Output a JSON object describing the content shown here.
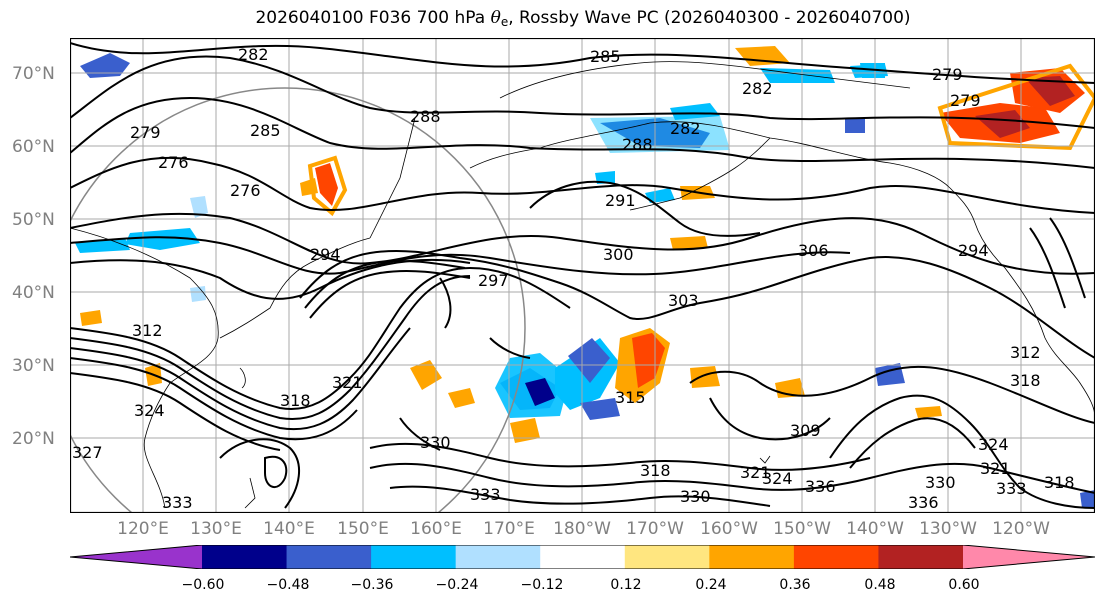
{
  "title": {
    "prefix": "2026040100 F036 700 hPa ",
    "theta": "θ",
    "theta_sub": "e",
    "suffix": ", Rossby Wave PC (2026040300 - 2026040700)"
  },
  "latitude_labels": [
    "70°N",
    "60°N",
    "50°N",
    "40°N",
    "30°N",
    "20°N"
  ],
  "longitude_labels": [
    "120°E",
    "130°E",
    "140°E",
    "150°E",
    "160°E",
    "170°E",
    "180°W",
    "170°W",
    "160°W",
    "150°W",
    "140°W",
    "130°W",
    "120°W"
  ],
  "contour_labels": [
    "282",
    "285",
    "288",
    "285",
    "282",
    "279",
    "279",
    "276",
    "276",
    "279",
    "288",
    "282",
    "291",
    "294",
    "300",
    "297",
    "306",
    "303",
    "294",
    "312",
    "321",
    "318",
    "324",
    "315",
    "309",
    "312",
    "318",
    "330",
    "333",
    "327",
    "324",
    "321",
    "318",
    "330",
    "336",
    "333",
    "330",
    "336",
    "324",
    "321",
    "318",
    "333"
  ],
  "colorbar": {
    "ticks": [
      "−0.60",
      "−0.48",
      "−0.36",
      "−0.24",
      "−0.12",
      "0.12",
      "0.24",
      "0.36",
      "0.48",
      "0.60"
    ],
    "colors": {
      "under": "#9933cc",
      "bins": [
        "#9933cc",
        "#00008b",
        "#3a5fcd",
        "#00bfff",
        "#b0e0ff",
        "#ffffff",
        "#ffe680",
        "#ffa500",
        "#ff4500",
        "#b22222",
        "#ff88aa"
      ],
      "over": "#ff88aa"
    }
  },
  "colors": {
    "label_gray": "#808080",
    "grid": "#aaaaaa",
    "contour": "#000000"
  }
}
